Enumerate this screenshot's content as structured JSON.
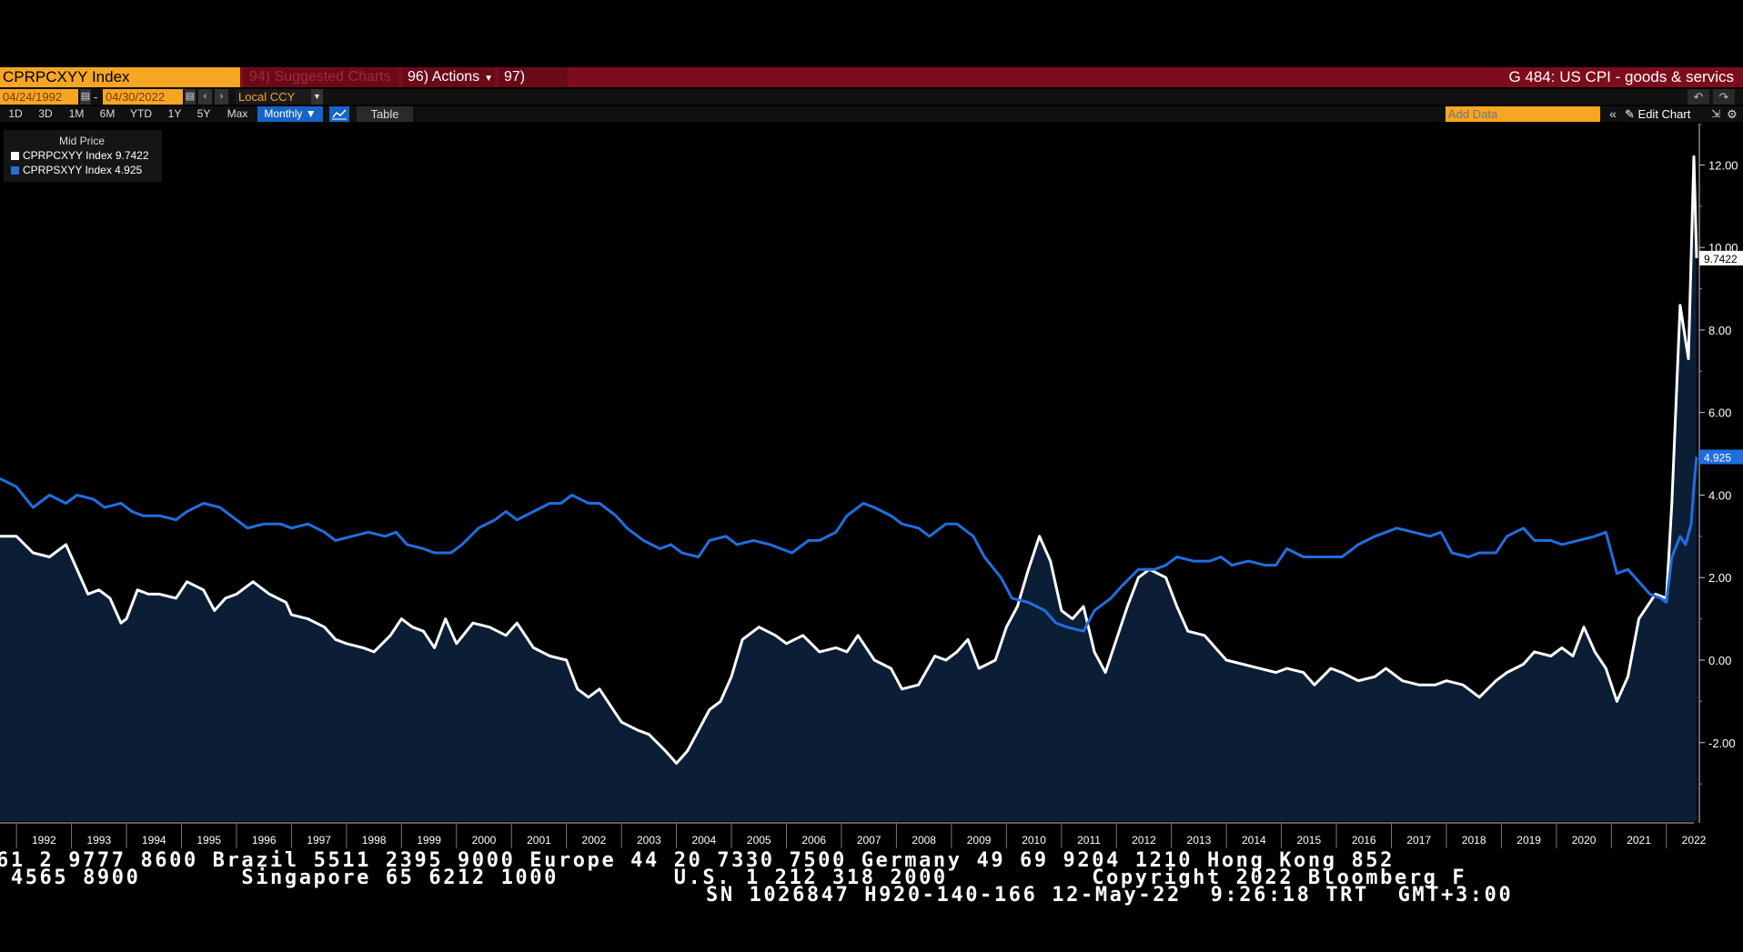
{
  "header": {
    "ticker": "CPRPCXYY Index",
    "suggested_charts": "94) Suggested Charts",
    "actions": "96) Actions",
    "edit": "97) Edit",
    "chart_title": "G 484: US CPI - goods & servics"
  },
  "toolbar": {
    "start_date": "04/24/1992",
    "end_date": "04/30/2022",
    "currency": "Local CCY",
    "periods": [
      "1D",
      "3D",
      "1M",
      "6M",
      "YTD",
      "1Y",
      "5Y",
      "Max"
    ],
    "frequency": "Monthly",
    "table_label": "Table",
    "add_data_placeholder": "Add Data",
    "edit_chart_label": "Edit Chart"
  },
  "legend": {
    "title": "Mid Price",
    "items": [
      {
        "label": "CPRPCXYY Index 9.7422",
        "color": "#ffffff"
      },
      {
        "label": "CPRPSXYY Index 4.925",
        "color": "#1f6fe0"
      }
    ]
  },
  "chart_data": {
    "type": "line",
    "x_unit": "year",
    "xlim": [
      1991.7,
      2022.5
    ],
    "ylim": [
      -3.9,
      13.0
    ],
    "yticks": [
      -2.0,
      0.0,
      2.0,
      4.0,
      6.0,
      8.0,
      10.0,
      12.0
    ],
    "ytick_labels": [
      "-2.00",
      "0.00",
      "2.00",
      "4.00",
      "6.00",
      "8.00",
      "10.00",
      "12.00"
    ],
    "xtick_labels": [
      "1992",
      "1993",
      "1994",
      "1995",
      "1996",
      "1997",
      "1998",
      "1999",
      "2000",
      "2001",
      "2002",
      "2003",
      "2004",
      "2005",
      "2006",
      "2007",
      "2008",
      "2009",
      "2010",
      "2011",
      "2012",
      "2013",
      "2014",
      "2015",
      "2016",
      "2017",
      "2018",
      "2019",
      "2020",
      "2021",
      "2022"
    ],
    "grid": false,
    "legend_position": "top-left",
    "last_value_labels": [
      "9.7422",
      "4.925"
    ],
    "series": [
      {
        "name": "CPRPCXYY Index",
        "color": "#ffffff",
        "fill": "#0b1e36",
        "points": [
          [
            1991.7,
            3.0
          ],
          [
            1992.0,
            3.0
          ],
          [
            1992.3,
            2.6
          ],
          [
            1992.6,
            2.5
          ],
          [
            1992.9,
            2.8
          ],
          [
            1993.0,
            2.5
          ],
          [
            1993.3,
            1.6
          ],
          [
            1993.5,
            1.7
          ],
          [
            1993.7,
            1.5
          ],
          [
            1993.9,
            0.9
          ],
          [
            1994.0,
            1.0
          ],
          [
            1994.2,
            1.7
          ],
          [
            1994.4,
            1.6
          ],
          [
            1994.6,
            1.6
          ],
          [
            1994.9,
            1.5
          ],
          [
            1995.1,
            1.9
          ],
          [
            1995.4,
            1.7
          ],
          [
            1995.6,
            1.2
          ],
          [
            1995.8,
            1.5
          ],
          [
            1996.0,
            1.6
          ],
          [
            1996.3,
            1.9
          ],
          [
            1996.6,
            1.6
          ],
          [
            1996.9,
            1.4
          ],
          [
            1997.0,
            1.1
          ],
          [
            1997.3,
            1.0
          ],
          [
            1997.6,
            0.8
          ],
          [
            1997.8,
            0.5
          ],
          [
            1998.0,
            0.4
          ],
          [
            1998.3,
            0.3
          ],
          [
            1998.5,
            0.2
          ],
          [
            1998.8,
            0.6
          ],
          [
            1999.0,
            1.0
          ],
          [
            1999.2,
            0.8
          ],
          [
            1999.4,
            0.7
          ],
          [
            1999.6,
            0.3
          ],
          [
            1999.8,
            1.0
          ],
          [
            2000.0,
            0.4
          ],
          [
            2000.3,
            0.9
          ],
          [
            2000.6,
            0.8
          ],
          [
            2000.9,
            0.6
          ],
          [
            2001.1,
            0.9
          ],
          [
            2001.4,
            0.3
          ],
          [
            2001.7,
            0.1
          ],
          [
            2002.0,
            0.0
          ],
          [
            2002.2,
            -0.7
          ],
          [
            2002.4,
            -0.9
          ],
          [
            2002.6,
            -0.7
          ],
          [
            2002.8,
            -1.1
          ],
          [
            2003.0,
            -1.5
          ],
          [
            2003.3,
            -1.7
          ],
          [
            2003.5,
            -1.8
          ],
          [
            2003.8,
            -2.2
          ],
          [
            2004.0,
            -2.5
          ],
          [
            2004.2,
            -2.2
          ],
          [
            2004.4,
            -1.7
          ],
          [
            2004.6,
            -1.2
          ],
          [
            2004.8,
            -1.0
          ],
          [
            2005.0,
            -0.4
          ],
          [
            2005.2,
            0.5
          ],
          [
            2005.5,
            0.8
          ],
          [
            2005.8,
            0.6
          ],
          [
            2006.0,
            0.4
          ],
          [
            2006.3,
            0.6
          ],
          [
            2006.6,
            0.2
          ],
          [
            2006.9,
            0.3
          ],
          [
            2007.1,
            0.2
          ],
          [
            2007.3,
            0.6
          ],
          [
            2007.6,
            0.0
          ],
          [
            2007.9,
            -0.2
          ],
          [
            2008.1,
            -0.7
          ],
          [
            2008.4,
            -0.6
          ],
          [
            2008.7,
            0.1
          ],
          [
            2008.9,
            0.0
          ],
          [
            2009.1,
            0.2
          ],
          [
            2009.3,
            0.5
          ],
          [
            2009.5,
            -0.2
          ],
          [
            2009.8,
            0.0
          ],
          [
            2010.0,
            0.8
          ],
          [
            2010.2,
            1.3
          ],
          [
            2010.4,
            2.2
          ],
          [
            2010.6,
            3.0
          ],
          [
            2010.8,
            2.4
          ],
          [
            2011.0,
            1.2
          ],
          [
            2011.2,
            1.0
          ],
          [
            2011.4,
            1.3
          ],
          [
            2011.6,
            0.2
          ],
          [
            2011.8,
            -0.3
          ],
          [
            2012.0,
            0.5
          ],
          [
            2012.2,
            1.3
          ],
          [
            2012.4,
            2.0
          ],
          [
            2012.6,
            2.2
          ],
          [
            2012.9,
            2.0
          ],
          [
            2013.1,
            1.3
          ],
          [
            2013.3,
            0.7
          ],
          [
            2013.6,
            0.6
          ],
          [
            2013.8,
            0.3
          ],
          [
            2014.0,
            0.0
          ],
          [
            2014.3,
            -0.1
          ],
          [
            2014.6,
            -0.2
          ],
          [
            2014.9,
            -0.3
          ],
          [
            2015.1,
            -0.2
          ],
          [
            2015.4,
            -0.3
          ],
          [
            2015.6,
            -0.6
          ],
          [
            2015.9,
            -0.2
          ],
          [
            2016.1,
            -0.3
          ],
          [
            2016.4,
            -0.5
          ],
          [
            2016.7,
            -0.4
          ],
          [
            2016.9,
            -0.2
          ],
          [
            2017.2,
            -0.5
          ],
          [
            2017.5,
            -0.6
          ],
          [
            2017.8,
            -0.6
          ],
          [
            2018.0,
            -0.5
          ],
          [
            2018.3,
            -0.6
          ],
          [
            2018.6,
            -0.9
          ],
          [
            2018.9,
            -0.5
          ],
          [
            2019.1,
            -0.3
          ],
          [
            2019.4,
            -0.1
          ],
          [
            2019.6,
            0.2
          ],
          [
            2019.9,
            0.1
          ],
          [
            2020.1,
            0.3
          ],
          [
            2020.3,
            0.1
          ],
          [
            2020.5,
            0.8
          ],
          [
            2020.7,
            0.2
          ],
          [
            2020.9,
            -0.2
          ],
          [
            2021.1,
            -1.0
          ],
          [
            2021.3,
            -0.4
          ],
          [
            2021.5,
            1.0
          ],
          [
            2021.8,
            1.6
          ],
          [
            2022.0,
            1.5
          ],
          [
            2022.1,
            3.8
          ],
          [
            2022.25,
            8.6
          ],
          [
            2022.4,
            7.3
          ],
          [
            2022.5,
            12.2
          ],
          [
            2022.55,
            9.7422
          ]
        ]
      },
      {
        "name": "CPRPSXYY Index",
        "color": "#1f6fe0",
        "points": [
          [
            1991.7,
            4.4
          ],
          [
            1992.0,
            4.2
          ],
          [
            1992.3,
            3.7
          ],
          [
            1992.6,
            4.0
          ],
          [
            1992.9,
            3.8
          ],
          [
            1993.1,
            4.0
          ],
          [
            1993.4,
            3.9
          ],
          [
            1993.6,
            3.7
          ],
          [
            1993.9,
            3.8
          ],
          [
            1994.1,
            3.6
          ],
          [
            1994.3,
            3.5
          ],
          [
            1994.6,
            3.5
          ],
          [
            1994.9,
            3.4
          ],
          [
            1995.1,
            3.6
          ],
          [
            1995.4,
            3.8
          ],
          [
            1995.7,
            3.7
          ],
          [
            1995.9,
            3.5
          ],
          [
            1996.2,
            3.2
          ],
          [
            1996.5,
            3.3
          ],
          [
            1996.8,
            3.3
          ],
          [
            1997.0,
            3.2
          ],
          [
            1997.3,
            3.3
          ],
          [
            1997.6,
            3.1
          ],
          [
            1997.8,
            2.9
          ],
          [
            1998.1,
            3.0
          ],
          [
            1998.4,
            3.1
          ],
          [
            1998.7,
            3.0
          ],
          [
            1998.9,
            3.1
          ],
          [
            1999.1,
            2.8
          ],
          [
            1999.4,
            2.7
          ],
          [
            1999.6,
            2.6
          ],
          [
            1999.9,
            2.6
          ],
          [
            2000.1,
            2.8
          ],
          [
            2000.4,
            3.2
          ],
          [
            2000.7,
            3.4
          ],
          [
            2000.9,
            3.6
          ],
          [
            2001.1,
            3.4
          ],
          [
            2001.4,
            3.6
          ],
          [
            2001.7,
            3.8
          ],
          [
            2001.9,
            3.8
          ],
          [
            2002.1,
            4.0
          ],
          [
            2002.4,
            3.8
          ],
          [
            2002.6,
            3.8
          ],
          [
            2002.9,
            3.5
          ],
          [
            2003.1,
            3.2
          ],
          [
            2003.4,
            2.9
          ],
          [
            2003.7,
            2.7
          ],
          [
            2003.9,
            2.8
          ],
          [
            2004.1,
            2.6
          ],
          [
            2004.4,
            2.5
          ],
          [
            2004.6,
            2.9
          ],
          [
            2004.9,
            3.0
          ],
          [
            2005.1,
            2.8
          ],
          [
            2005.4,
            2.9
          ],
          [
            2005.7,
            2.8
          ],
          [
            2005.9,
            2.7
          ],
          [
            2006.1,
            2.6
          ],
          [
            2006.4,
            2.9
          ],
          [
            2006.6,
            2.9
          ],
          [
            2006.9,
            3.1
          ],
          [
            2007.1,
            3.5
          ],
          [
            2007.4,
            3.8
          ],
          [
            2007.6,
            3.7
          ],
          [
            2007.9,
            3.5
          ],
          [
            2008.1,
            3.3
          ],
          [
            2008.4,
            3.2
          ],
          [
            2008.6,
            3.0
          ],
          [
            2008.9,
            3.3
          ],
          [
            2009.1,
            3.3
          ],
          [
            2009.4,
            3.0
          ],
          [
            2009.6,
            2.5
          ],
          [
            2009.9,
            2.0
          ],
          [
            2010.1,
            1.5
          ],
          [
            2010.4,
            1.4
          ],
          [
            2010.7,
            1.2
          ],
          [
            2010.9,
            0.9
          ],
          [
            2011.1,
            0.8
          ],
          [
            2011.4,
            0.7
          ],
          [
            2011.6,
            1.2
          ],
          [
            2011.9,
            1.5
          ],
          [
            2012.1,
            1.8
          ],
          [
            2012.4,
            2.2
          ],
          [
            2012.7,
            2.2
          ],
          [
            2012.9,
            2.3
          ],
          [
            2013.1,
            2.5
          ],
          [
            2013.4,
            2.4
          ],
          [
            2013.7,
            2.4
          ],
          [
            2013.9,
            2.5
          ],
          [
            2014.1,
            2.3
          ],
          [
            2014.4,
            2.4
          ],
          [
            2014.7,
            2.3
          ],
          [
            2014.9,
            2.3
          ],
          [
            2015.1,
            2.7
          ],
          [
            2015.4,
            2.5
          ],
          [
            2015.7,
            2.5
          ],
          [
            2015.9,
            2.5
          ],
          [
            2016.1,
            2.5
          ],
          [
            2016.4,
            2.8
          ],
          [
            2016.7,
            3.0
          ],
          [
            2016.9,
            3.1
          ],
          [
            2017.1,
            3.2
          ],
          [
            2017.4,
            3.1
          ],
          [
            2017.7,
            3.0
          ],
          [
            2017.9,
            3.1
          ],
          [
            2018.1,
            2.6
          ],
          [
            2018.4,
            2.5
          ],
          [
            2018.6,
            2.6
          ],
          [
            2018.9,
            2.6
          ],
          [
            2019.1,
            3.0
          ],
          [
            2019.4,
            3.2
          ],
          [
            2019.6,
            2.9
          ],
          [
            2019.9,
            2.9
          ],
          [
            2020.1,
            2.8
          ],
          [
            2020.4,
            2.9
          ],
          [
            2020.7,
            3.0
          ],
          [
            2020.9,
            3.1
          ],
          [
            2021.1,
            2.1
          ],
          [
            2021.3,
            2.2
          ],
          [
            2021.5,
            1.9
          ],
          [
            2021.7,
            1.6
          ],
          [
            2021.9,
            1.5
          ],
          [
            2022.0,
            1.4
          ],
          [
            2022.1,
            2.5
          ],
          [
            2022.25,
            3.0
          ],
          [
            2022.35,
            2.8
          ],
          [
            2022.45,
            3.3
          ],
          [
            2022.5,
            4.2
          ],
          [
            2022.55,
            4.925
          ]
        ]
      }
    ]
  },
  "footer": {
    "line1": "61 2 9777 8600 Brazil 5511 2395 9000 Europe 44 20 7330 7500 Germany 49 69 9204 1210 Hong Kong 852",
    "line2": " 4565 8900       Singapore 65 6212 1000        U.S. 1 212 318 2000          Copyright 2022 Bloomberg F",
    "line3": "SN 1026847 H920-140-166 12-May-22  9:26:18 TRT  GMT+3:00"
  }
}
